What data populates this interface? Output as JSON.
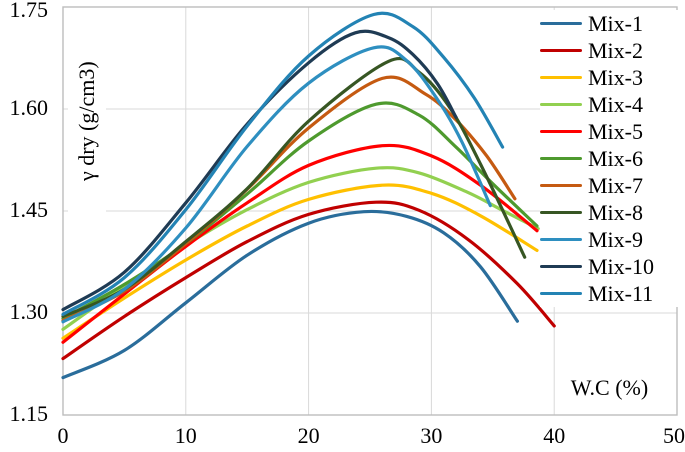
{
  "chart_data": {
    "type": "line",
    "title": "",
    "xlabel": "W.C (%)",
    "ylabel": "γ dry (g/cm3)",
    "xlim": [
      0,
      50
    ],
    "ylim": [
      1.15,
      1.75
    ],
    "x_ticks": [
      "0",
      "10",
      "20",
      "30",
      "40",
      "50"
    ],
    "y_ticks": [
      "1.75",
      "1.60",
      "1.45",
      "1.30",
      "1.15"
    ],
    "grid": true,
    "legend_position": "right",
    "grid_color": "#d9d9d9",
    "border_color": "#bdbdbd",
    "text_color": "#000000",
    "series": [
      {
        "name": "Mix-1",
        "color": "#2a6d9b",
        "points": [
          [
            0,
            1.205
          ],
          [
            5,
            1.245
          ],
          [
            10,
            1.315
          ],
          [
            15,
            1.385
          ],
          [
            20,
            1.432
          ],
          [
            24.5,
            1.449
          ],
          [
            28,
            1.442
          ],
          [
            31,
            1.418
          ],
          [
            34,
            1.368
          ],
          [
            37,
            1.288
          ]
        ]
      },
      {
        "name": "Mix-2",
        "color": "#c00000",
        "points": [
          [
            0,
            1.233
          ],
          [
            5,
            1.295
          ],
          [
            10,
            1.352
          ],
          [
            15,
            1.405
          ],
          [
            20,
            1.445
          ],
          [
            25.5,
            1.463
          ],
          [
            29,
            1.451
          ],
          [
            33,
            1.408
          ],
          [
            37,
            1.343
          ],
          [
            40,
            1.281
          ]
        ]
      },
      {
        "name": "Mix-3",
        "color": "#ffc000",
        "points": [
          [
            0,
            1.263
          ],
          [
            5,
            1.322
          ],
          [
            10,
            1.378
          ],
          [
            15,
            1.428
          ],
          [
            20,
            1.467
          ],
          [
            26,
            1.488
          ],
          [
            30,
            1.476
          ],
          [
            34,
            1.443
          ],
          [
            38.6,
            1.392
          ]
        ]
      },
      {
        "name": "Mix-4",
        "color": "#92d050",
        "points": [
          [
            0,
            1.276
          ],
          [
            5,
            1.34
          ],
          [
            10,
            1.4
          ],
          [
            15,
            1.452
          ],
          [
            20,
            1.492
          ],
          [
            25.5,
            1.513
          ],
          [
            29,
            1.506
          ],
          [
            33,
            1.477
          ],
          [
            36,
            1.449
          ],
          [
            38.7,
            1.424
          ]
        ]
      },
      {
        "name": "Mix-5",
        "color": "#ff0000",
        "points": [
          [
            0,
            1.257
          ],
          [
            5,
            1.328
          ],
          [
            10,
            1.398
          ],
          [
            15,
            1.462
          ],
          [
            20,
            1.517
          ],
          [
            26,
            1.546
          ],
          [
            30,
            1.531
          ],
          [
            34,
            1.488
          ],
          [
            38.6,
            1.421
          ]
        ]
      },
      {
        "name": "Mix-6",
        "color": "#4e9a2e",
        "points": [
          [
            0,
            1.292
          ],
          [
            5,
            1.342
          ],
          [
            10,
            1.402
          ],
          [
            15,
            1.475
          ],
          [
            20,
            1.553
          ],
          [
            25.5,
            1.607
          ],
          [
            29,
            1.591
          ],
          [
            32,
            1.544
          ],
          [
            35,
            1.49
          ],
          [
            38.6,
            1.428
          ]
        ]
      },
      {
        "name": "Mix-7",
        "color": "#c55a11",
        "points": [
          [
            0,
            1.289
          ],
          [
            5,
            1.332
          ],
          [
            10,
            1.402
          ],
          [
            15,
            1.482
          ],
          [
            20,
            1.572
          ],
          [
            26,
            1.645
          ],
          [
            29.5,
            1.622
          ],
          [
            32,
            1.584
          ],
          [
            34.5,
            1.531
          ],
          [
            36.8,
            1.468
          ]
        ]
      },
      {
        "name": "Mix-8",
        "color": "#375623",
        "points": [
          [
            0,
            1.295
          ],
          [
            5,
            1.335
          ],
          [
            10,
            1.405
          ],
          [
            15,
            1.483
          ],
          [
            20,
            1.582
          ],
          [
            26.5,
            1.67
          ],
          [
            29,
            1.654
          ],
          [
            31.5,
            1.602
          ],
          [
            34,
            1.519
          ],
          [
            37.6,
            1.382
          ]
        ]
      },
      {
        "name": "Mix-9",
        "color": "#2e8fc0",
        "points": [
          [
            0,
            1.287
          ],
          [
            5,
            1.335
          ],
          [
            10,
            1.425
          ],
          [
            15,
            1.545
          ],
          [
            20,
            1.638
          ],
          [
            25.3,
            1.69
          ],
          [
            28,
            1.671
          ],
          [
            30.5,
            1.614
          ],
          [
            32.5,
            1.551
          ],
          [
            34.8,
            1.458
          ]
        ]
      },
      {
        "name": "Mix-10",
        "color": "#1f3b54",
        "points": [
          [
            0,
            1.305
          ],
          [
            5,
            1.36
          ],
          [
            10,
            1.462
          ],
          [
            15,
            1.578
          ],
          [
            20,
            1.668
          ],
          [
            23.8,
            1.712
          ],
          [
            26.5,
            1.705
          ],
          [
            28.5,
            1.68
          ],
          [
            30.5,
            1.637
          ],
          [
            32,
            1.588
          ]
        ]
      },
      {
        "name": "Mix-11",
        "color": "#2383b4",
        "points": [
          [
            0,
            1.298
          ],
          [
            5,
            1.352
          ],
          [
            10,
            1.452
          ],
          [
            15,
            1.575
          ],
          [
            20,
            1.678
          ],
          [
            25.3,
            1.739
          ],
          [
            28.5,
            1.721
          ],
          [
            31,
            1.676
          ],
          [
            33.5,
            1.616
          ],
          [
            35.8,
            1.544
          ]
        ]
      }
    ]
  }
}
